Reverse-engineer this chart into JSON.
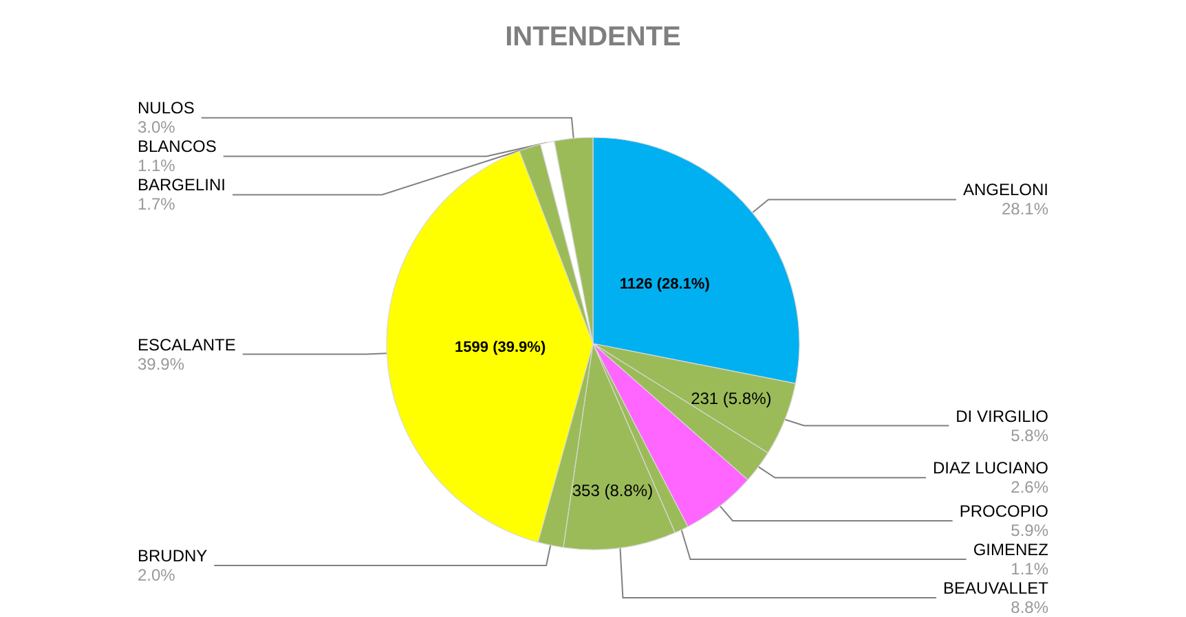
{
  "chart_data": {
    "type": "pie",
    "title": "INTENDENTE",
    "categories": [
      "ANGELONI",
      "DI VIRGILIO",
      "DIAZ LUCIANO",
      "PROCOPIO",
      "GIMENEZ",
      "BEAUVALLET",
      "BRUDNY",
      "ESCALANTE",
      "BARGELINI",
      "BLANCOS",
      "NULOS"
    ],
    "values": [
      28.1,
      5.8,
      2.6,
      5.9,
      1.1,
      8.8,
      2.0,
      39.9,
      1.7,
      1.1,
      3.0
    ],
    "value_labels": [
      "28.1%",
      "5.8%",
      "2.6%",
      "5.9%",
      "1.1%",
      "8.8%",
      "2.0%",
      "39.9%",
      "1.7%",
      "1.1%",
      "3.0%"
    ],
    "colors": [
      "#00b0f0",
      "#9bbb59",
      "#9bbb59",
      "#ff66ff",
      "#9bbb59",
      "#9bbb59",
      "#9bbb59",
      "#ffff00",
      "#9bbb59",
      "#ffffff",
      "#9bbb59"
    ],
    "annotations": [
      {
        "text": "1126 (28.1%)",
        "x": "ANGELONI"
      },
      {
        "text": "231 (5.8%)",
        "x": "DI VIRGILIO"
      },
      {
        "text": "353 (8.8%)",
        "x": "BEAUVALLET"
      },
      {
        "text": "1599 (39.9%)",
        "x": "ESCALANTE"
      }
    ],
    "legend": false
  }
}
